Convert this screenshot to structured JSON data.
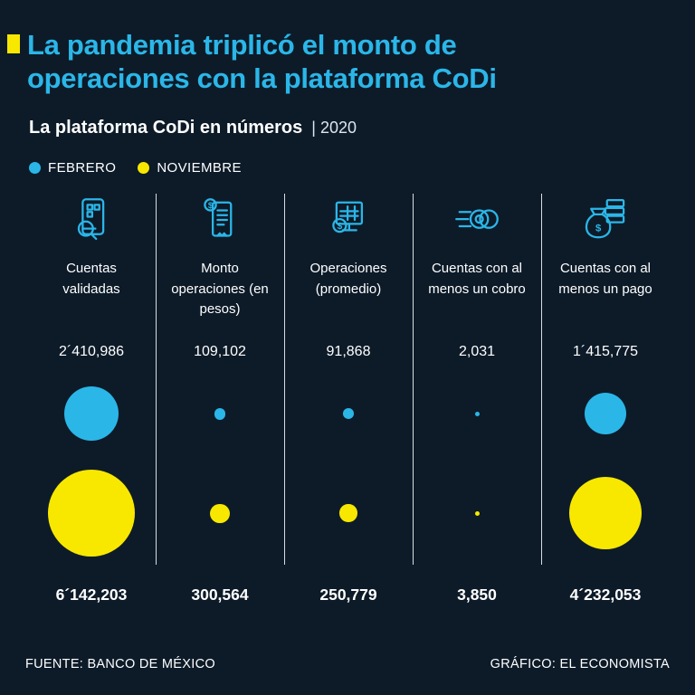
{
  "colors": {
    "background": "#0D1B29",
    "cyan": "#2BB6E8",
    "yellow": "#F8E800"
  },
  "header": {
    "title_line1": "La pandemia triplicó el monto de",
    "title_line2": "operaciones con la plataforma CoDi",
    "subtitle": "La plataforma CoDi en números",
    "year": "| 2020"
  },
  "legend": {
    "feb": "FEBRERO",
    "nov": "NOVIEMBRE"
  },
  "columns": [
    {
      "label": "Cuentas validadas",
      "feb_label": "2´410,986",
      "nov_label": "6´142,203"
    },
    {
      "label": "Monto operaciones (en pesos)",
      "feb_label": "109,102",
      "nov_label": "300,564"
    },
    {
      "label": "Operaciones (promedio)",
      "feb_label": "91,868",
      "nov_label": "250,779"
    },
    {
      "label": "Cuentas con al menos un cobro",
      "feb_label": "2,031",
      "nov_label": "3,850"
    },
    {
      "label": "Cuentas con al menos un pago",
      "feb_label": "1´415,775",
      "nov_label": "4´232,053"
    }
  ],
  "chart_data": {
    "type": "bubble",
    "title": "La plataforma CoDi en números | 2020",
    "subtitle": "La pandemia triplicó el monto de operaciones con la plataforma CoDi",
    "categories": [
      "Cuentas validadas",
      "Monto operaciones (en pesos)",
      "Operaciones (promedio)",
      "Cuentas con al menos un cobro",
      "Cuentas con al menos un pago"
    ],
    "series": [
      {
        "name": "FEBRERO",
        "color": "#2BB6E8",
        "values": [
          2410986,
          109102,
          91868,
          2031,
          1415775
        ]
      },
      {
        "name": "NOVIEMBRE",
        "color": "#F8E800",
        "values": [
          6142203,
          300564,
          250779,
          3850,
          4232053
        ]
      }
    ],
    "legend_position": "top",
    "sizing": "bubble area proportional to value"
  },
  "footer": {
    "source": "FUENTE: BANCO DE MÉXICO",
    "credit": "GRÁFICO: EL ECONOMISTA"
  }
}
